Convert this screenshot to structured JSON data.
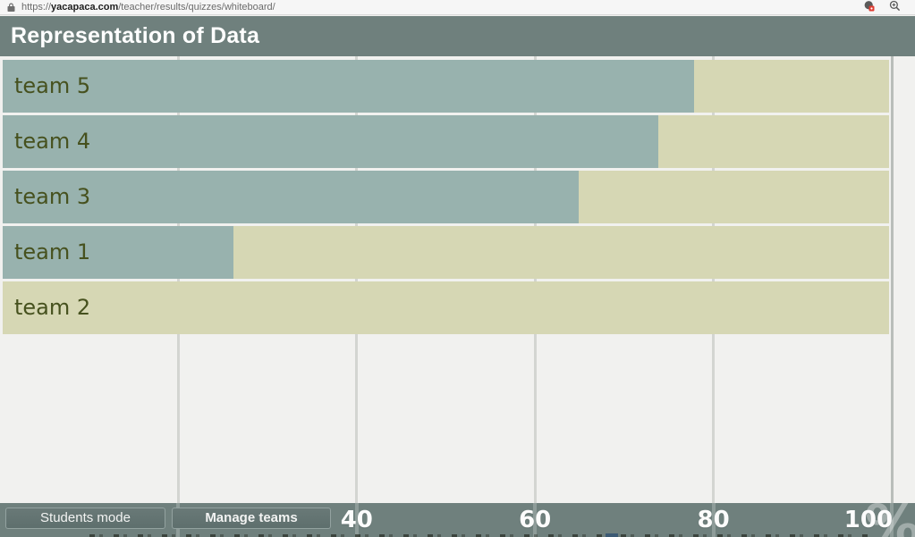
{
  "browser": {
    "url": {
      "scheme": "https://",
      "domain": "yacapaca.com",
      "path": "/teacher/results/quizzes/whiteboard/"
    }
  },
  "header": {
    "title": "Representation of Data"
  },
  "chart_data": {
    "type": "bar",
    "orientation": "horizontal",
    "title": "Representation of Data",
    "categories": [
      "team 5",
      "team 4",
      "team 3",
      "team 1",
      "team 2"
    ],
    "values": [
      78,
      74,
      65,
      26,
      0
    ],
    "unit": "%",
    "xlabel": "",
    "ylabel": "",
    "xlim": [
      0,
      100
    ],
    "x_ticks": [
      20,
      40,
      60,
      80,
      100
    ],
    "x_tick_labels_visible": [
      "40",
      "60",
      "80",
      "100"
    ],
    "grid": true,
    "legend": "none",
    "colors": {
      "bar_fill": "#98b2ae",
      "bar_track": "#d6d7b4",
      "label_text": "#46511e",
      "band": "#6f807d",
      "background": "#f1f1ef",
      "gridline": "#d3d5d1"
    }
  },
  "footer": {
    "buttons": [
      {
        "label": "Students mode"
      },
      {
        "label": "Manage teams"
      }
    ],
    "unit_symbol": "%"
  }
}
